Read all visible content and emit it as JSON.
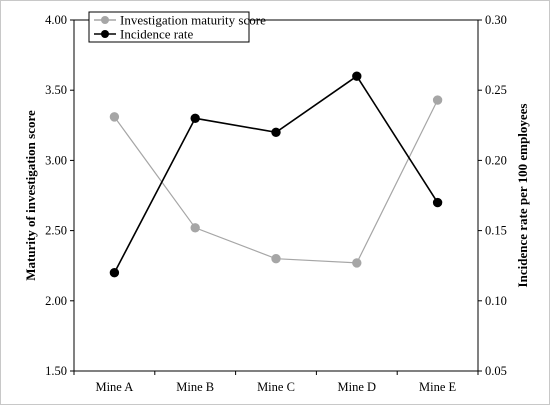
{
  "chart_data": {
    "type": "line",
    "categories": [
      "Mine A",
      "Mine B",
      "Mine C",
      "Mine D",
      "Mine E"
    ],
    "series": [
      {
        "name": "Investigation maturity score",
        "axis": "left",
        "color": "#a6a6a6",
        "values": [
          3.31,
          2.52,
          2.3,
          2.27,
          3.43
        ]
      },
      {
        "name": "Incidence rate",
        "axis": "right",
        "color": "#000000",
        "values": [
          0.12,
          0.23,
          0.22,
          0.26,
          0.17
        ]
      }
    ],
    "ylabel_left": "Maturity of investigation score",
    "ylabel_right": "Incidence rate per 100 employees",
    "ylim_left": [
      1.5,
      4.0
    ],
    "ylim_right": [
      0.05,
      0.3
    ],
    "yticks_left": [
      "1.50",
      "2.00",
      "2.50",
      "3.00",
      "3.50",
      "4.00"
    ],
    "yticks_right": [
      "0.05",
      "0.10",
      "0.15",
      "0.20",
      "0.25",
      "0.30"
    ],
    "grid": false,
    "legend_position": "top-left"
  }
}
